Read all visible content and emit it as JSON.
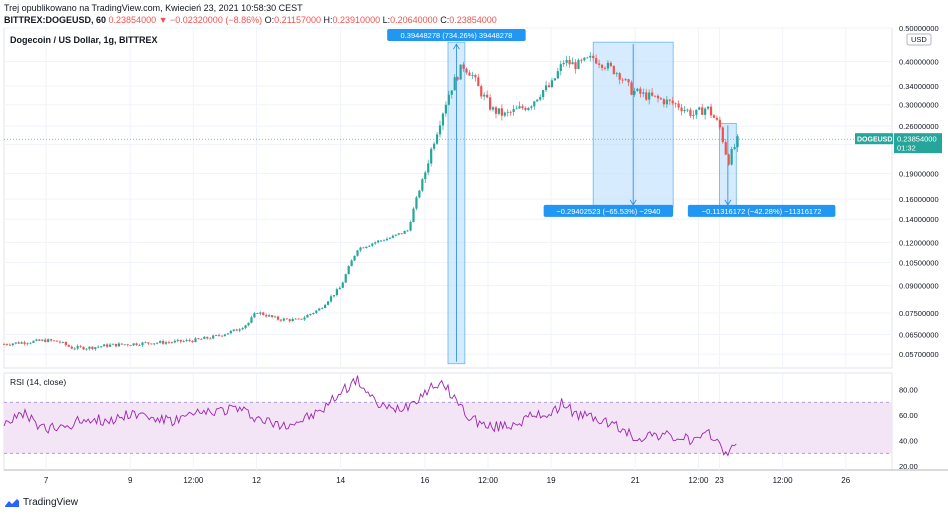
{
  "header": {
    "line1": "Trej opublikowano na TradingView.com, Kwiecień 23, 2021 10:58:30 CEST",
    "symbol": "BITTREX:DOGEUSD, 60",
    "price": "0.23854000",
    "change": "▼ −0.02320000 (−8.86%)",
    "o_label": "O:",
    "o_value": "0.21157000",
    "h_label": "H:",
    "h_value": "0.23910000",
    "l_label": "L:",
    "l_value": "0.20640000",
    "c_label": "C:",
    "c_value": "0.23854000"
  },
  "footer": {
    "brand": "TradingView"
  },
  "colors": {
    "up": "#26a69a",
    "down": "#ef5350",
    "rsi": "#9c27b0",
    "rsi_band": "#f3e5f5",
    "measure": "#bbdefb",
    "measure_label": "#2196f3",
    "price_tag": "#26a69a"
  },
  "chart_data": [
    {
      "type": "candlestick",
      "title": "Dogecoin / US Dollar, 1g, BITTREX",
      "currency": "USD",
      "y_scale": "log",
      "ylim": [
        0.052,
        0.5
      ],
      "y_ticks": [
        "0.50000000",
        "0.40000000",
        "0.34000000",
        "0.30000000",
        "0.26000000",
        "0.23000000",
        "0.19000000",
        "0.16000000",
        "0.14000000",
        "0.12000000",
        "0.10500000",
        "0.09000000",
        "0.07500000",
        "0.06500000",
        "0.05700000"
      ],
      "x_ticks": [
        "7",
        "9",
        "12:00",
        "12",
        "14",
        "16",
        "12:00",
        "19",
        "21",
        "12:00",
        "23",
        "12:00",
        "26"
      ],
      "last_price": {
        "symbol": "DOGEUSD",
        "value": "0.23854000",
        "countdown": "01:32"
      },
      "approx_close_path": [
        [
          6.0,
          0.061
        ],
        [
          7.0,
          0.0625
        ],
        [
          7.3,
          0.062
        ],
        [
          7.6,
          0.0595
        ],
        [
          8.0,
          0.0595
        ],
        [
          8.5,
          0.0605
        ],
        [
          9.0,
          0.061
        ],
        [
          9.5,
          0.0615
        ],
        [
          10.0,
          0.0618
        ],
        [
          10.5,
          0.0625
        ],
        [
          11.0,
          0.064
        ],
        [
          11.5,
          0.0668
        ],
        [
          11.8,
          0.07
        ],
        [
          12.0,
          0.0755
        ],
        [
          12.5,
          0.072
        ],
        [
          13.0,
          0.0715
        ],
        [
          13.5,
          0.077
        ],
        [
          14.0,
          0.089
        ],
        [
          14.4,
          0.115
        ],
        [
          14.8,
          0.12
        ],
        [
          15.2,
          0.124
        ],
        [
          15.6,
          0.13
        ],
        [
          15.8,
          0.16
        ],
        [
          16.0,
          0.19
        ],
        [
          16.3,
          0.255
        ],
        [
          16.6,
          0.33
        ],
        [
          16.9,
          0.39
        ],
        [
          17.1,
          0.37
        ],
        [
          17.3,
          0.33
        ],
        [
          17.6,
          0.29
        ],
        [
          17.9,
          0.28
        ],
        [
          18.2,
          0.29
        ],
        [
          18.5,
          0.3
        ],
        [
          18.8,
          0.33
        ],
        [
          19.0,
          0.34
        ],
        [
          19.3,
          0.4
        ],
        [
          19.6,
          0.39
        ],
        [
          20.0,
          0.41
        ],
        [
          20.3,
          0.39
        ],
        [
          20.6,
          0.37
        ],
        [
          20.9,
          0.33
        ],
        [
          21.2,
          0.32
        ],
        [
          21.6,
          0.31
        ],
        [
          22.0,
          0.3
        ],
        [
          22.4,
          0.28
        ],
        [
          22.7,
          0.295
        ],
        [
          23.0,
          0.26
        ],
        [
          23.2,
          0.205
        ],
        [
          23.45,
          0.2385
        ]
      ],
      "annotations": [
        {
          "label": "0.39448278 (734.26%) 39448278"
        },
        {
          "label": "−0.29402523 (−65.53%) −2940"
        },
        {
          "label": "−0.11316172 (−42.28%) −11316172"
        }
      ]
    },
    {
      "type": "line",
      "title": "RSI (14, close)",
      "ylim": [
        17,
        93
      ],
      "y_ticks": [
        "80.00",
        "60.00",
        "40.00",
        "20.00"
      ],
      "band": [
        30,
        70
      ],
      "approx_path": [
        [
          6.0,
          55
        ],
        [
          6.5,
          60
        ],
        [
          7.0,
          48
        ],
        [
          7.5,
          52
        ],
        [
          8.0,
          58
        ],
        [
          8.5,
          55
        ],
        [
          9.0,
          62
        ],
        [
          9.5,
          58
        ],
        [
          10.0,
          55
        ],
        [
          10.5,
          60
        ],
        [
          11.0,
          63
        ],
        [
          11.5,
          66
        ],
        [
          12.0,
          58
        ],
        [
          12.5,
          52
        ],
        [
          13.0,
          55
        ],
        [
          13.5,
          62
        ],
        [
          14.0,
          78
        ],
        [
          14.4,
          88
        ],
        [
          14.8,
          70
        ],
        [
          15.2,
          64
        ],
        [
          15.6,
          68
        ],
        [
          16.0,
          78
        ],
        [
          16.3,
          85
        ],
        [
          16.6,
          78
        ],
        [
          17.0,
          60
        ],
        [
          17.5,
          50
        ],
        [
          18.0,
          52
        ],
        [
          18.5,
          58
        ],
        [
          19.0,
          62
        ],
        [
          19.3,
          70
        ],
        [
          19.6,
          60
        ],
        [
          20.0,
          58
        ],
        [
          20.5,
          52
        ],
        [
          21.0,
          42
        ],
        [
          21.5,
          45
        ],
        [
          22.0,
          42
        ],
        [
          22.5,
          40
        ],
        [
          22.8,
          45
        ],
        [
          23.0,
          38
        ],
        [
          23.2,
          27
        ],
        [
          23.45,
          43
        ]
      ]
    }
  ]
}
